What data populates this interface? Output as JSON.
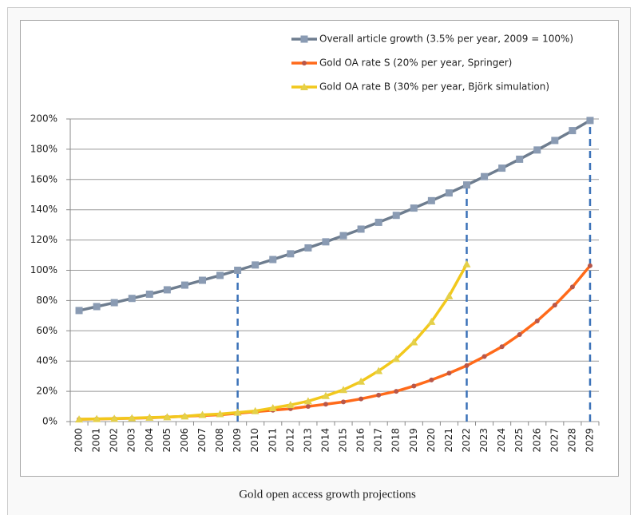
{
  "chart_data": {
    "type": "line",
    "caption": "Gold open access growth projections",
    "categories": [
      "2000",
      "2001",
      "2002",
      "2003",
      "2004",
      "2005",
      "2006",
      "2007",
      "2008",
      "2009",
      "2010",
      "2011",
      "2012",
      "2013",
      "2014",
      "2015",
      "2016",
      "2017",
      "2018",
      "2019",
      "2020",
      "2021",
      "2022",
      "2023",
      "2024",
      "2025",
      "2026",
      "2027",
      "2028",
      "2029"
    ],
    "series": [
      {
        "name": "Overall article growth (3.5% per year, 2009 = 100%)",
        "color": "#6e7d8f",
        "marker": "square",
        "marker_color": "#8a9bb3",
        "values": [
          73.4,
          76.0,
          78.6,
          81.4,
          84.2,
          87.1,
          90.2,
          93.4,
          96.6,
          100,
          103.5,
          107.1,
          110.9,
          114.8,
          118.8,
          122.9,
          127.2,
          131.7,
          136.3,
          141.1,
          146.0,
          151.1,
          156.4,
          161.9,
          167.5,
          173.4,
          179.5,
          185.8,
          192.3,
          199.0
        ]
      },
      {
        "name": "Gold OA rate S (20% per year, Springer)",
        "color": "#ff6a1a",
        "marker": "circle",
        "marker_color": "#b8574a",
        "values": [
          1.5,
          1.7,
          2,
          2.2,
          2.5,
          3,
          3.5,
          4,
          4.5,
          5.5,
          6.5,
          7.5,
          8.5,
          10,
          11.5,
          13,
          15,
          17.5,
          20,
          23.5,
          27.5,
          32,
          37,
          43,
          49.5,
          57.5,
          66.5,
          77,
          89,
          103
        ]
      },
      {
        "name": "Gold OA rate B (30% per year, Björk simulation)",
        "color": "#f2c81c",
        "marker": "triangle",
        "marker_color": "#e4d04a",
        "values": [
          1.5,
          1.8,
          2,
          2.3,
          2.7,
          3,
          3.5,
          4.5,
          5,
          6,
          7,
          9,
          11,
          13.5,
          17,
          21,
          26.5,
          33.5,
          41.5,
          52.5,
          66,
          83,
          104,
          null,
          null,
          null,
          null,
          null,
          null,
          null
        ]
      }
    ],
    "ylim": [
      0,
      200
    ],
    "yticks": [
      {
        "value": 0,
        "label": "0%"
      },
      {
        "value": 20,
        "label": "20%"
      },
      {
        "value": 40,
        "label": "40%"
      },
      {
        "value": 60,
        "label": "60%"
      },
      {
        "value": 80,
        "label": "80%"
      },
      {
        "value": 100,
        "label": "100%"
      },
      {
        "value": 120,
        "label": "120%"
      },
      {
        "value": 140,
        "label": "140%"
      },
      {
        "value": 160,
        "label": "160%"
      },
      {
        "value": 180,
        "label": "180%"
      },
      {
        "value": 200,
        "label": "200%"
      }
    ],
    "grid": true,
    "vlines": [
      "2009",
      "2022",
      "2029"
    ],
    "vline_color": "#3b72b8"
  }
}
